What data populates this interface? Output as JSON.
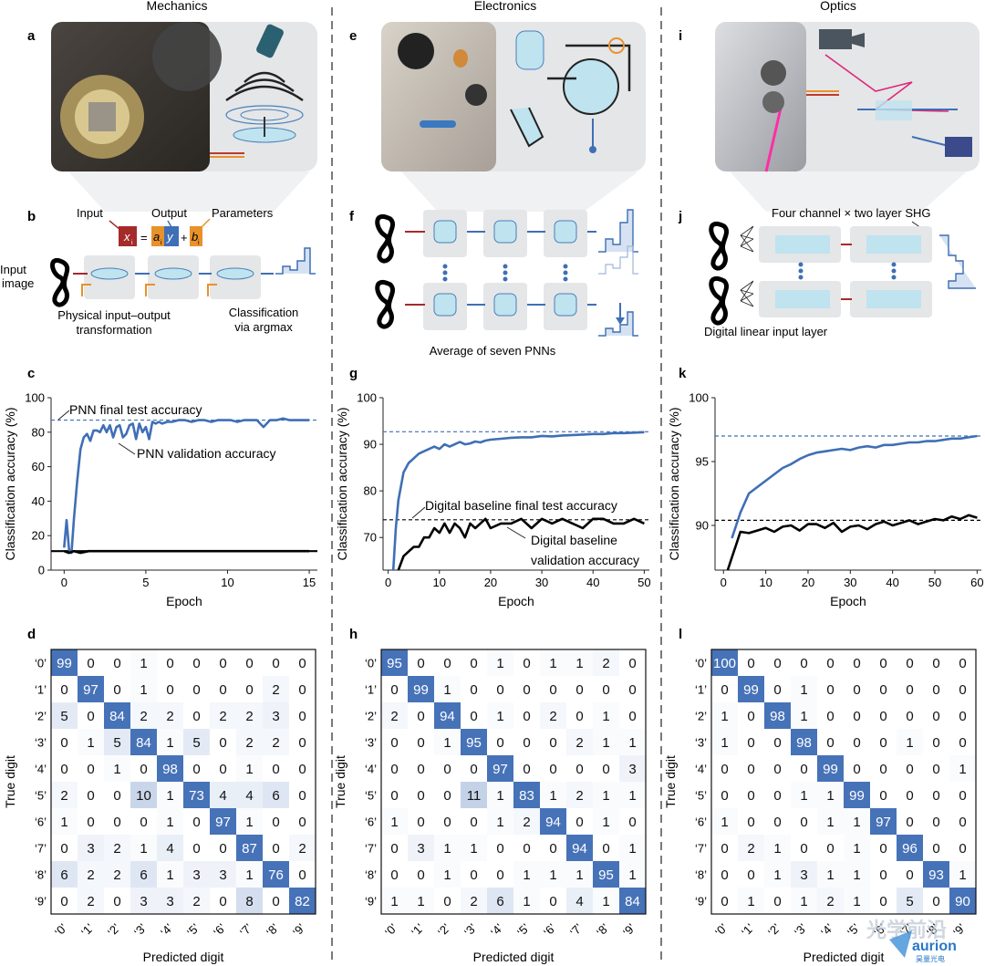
{
  "columns": [
    {
      "header": "Mechanics",
      "panel_labels": {
        "photo": "a",
        "schematic": "b",
        "curve": "c",
        "matrix": "d"
      },
      "schematic": {
        "equation": {
          "x": "x",
          "sub_x": "i",
          "eq": "=",
          "a": "a",
          "sub_a": "i",
          "y": "y",
          "plus": "+",
          "b": "b",
          "sub_b": "i"
        },
        "labels": [
          "Input",
          "Output",
          "Parameters",
          "Input",
          "image",
          "Physical input–output",
          "transformation",
          "Classification",
          "via argmax"
        ]
      }
    },
    {
      "header": "Electronics",
      "panel_labels": {
        "photo": "e",
        "schematic": "f",
        "curve": "g",
        "matrix": "h"
      },
      "schematic": {
        "labels": [
          "Average of seven PNNs"
        ]
      }
    },
    {
      "header": "Optics",
      "panel_labels": {
        "photo": "i",
        "schematic": "j",
        "curve": "k",
        "matrix": "l"
      },
      "schematic": {
        "labels": [
          "Four channel × two layer SHG",
          "Digital linear input layer"
        ]
      }
    }
  ],
  "colors": {
    "pnn": "#3f6fb5",
    "digital": "#000000",
    "red": "#a52a2a",
    "orange": "#e8922b",
    "panel_bg": "#e4e6e8"
  },
  "watermark": {
    "line1": "光学前沿",
    "line2": "aurion",
    "line3": "昊量光电"
  },
  "chart_data": [
    {
      "type": "line",
      "panel": "c",
      "xlabel": "Epoch",
      "ylabel": "Classification accuracy (%)",
      "xlim": [
        -0.8,
        15.5
      ],
      "ylim": [
        0,
        100
      ],
      "xticks": [
        0,
        5,
        10,
        15
      ],
      "yticks": [
        0,
        20,
        40,
        60,
        80,
        100
      ],
      "annotations": [
        "PNN final test accuracy",
        "PNN validation accuracy"
      ],
      "hlines": [
        {
          "y": 87,
          "color": "pnn"
        },
        {
          "y": 11,
          "color": "digital",
          "solid": true
        }
      ],
      "series": [
        {
          "color": "pnn",
          "x": [
            0,
            0.15,
            0.3,
            0.45,
            0.6,
            0.8,
            1.0,
            1.2,
            1.4,
            1.6,
            1.8,
            2.0,
            2.2,
            2.4,
            2.6,
            2.8,
            3.0,
            3.2,
            3.4,
            3.6,
            3.8,
            4.0,
            4.2,
            4.4,
            4.6,
            4.8,
            5.0,
            5.2,
            5.4,
            5.6,
            5.8,
            6.0,
            6.3,
            6.6,
            7.0,
            7.4,
            7.8,
            8.2,
            8.6,
            9.0,
            9.4,
            9.8,
            10.2,
            10.6,
            11.0,
            11.4,
            11.8,
            12.2,
            12.6,
            13.0,
            13.4,
            13.8,
            14.2,
            14.6,
            15.0
          ],
          "y": [
            13,
            29,
            12,
            10,
            30,
            52,
            70,
            77,
            79,
            75,
            81,
            81,
            80,
            84,
            80,
            84,
            77,
            83,
            84,
            77,
            79,
            84,
            85,
            76,
            85,
            80,
            83,
            76,
            86,
            85,
            86,
            85,
            86,
            86,
            87,
            87,
            86,
            87,
            87,
            86,
            87,
            87,
            87,
            86,
            87,
            87,
            87,
            83,
            87,
            87,
            88,
            87,
            87,
            87,
            87
          ]
        },
        {
          "color": "digital",
          "x": [
            0,
            0.3,
            0.6,
            1.0,
            1.5,
            2,
            4,
            6,
            8,
            10,
            12,
            14,
            15
          ],
          "y": [
            11,
            10,
            11,
            10,
            11,
            11,
            11,
            11,
            11,
            11,
            11,
            11,
            11
          ]
        }
      ]
    },
    {
      "type": "line",
      "panel": "g",
      "xlabel": "Epoch",
      "ylabel": "Classification accuracy (%)",
      "xlim": [
        -1,
        51
      ],
      "ylim": [
        63,
        100
      ],
      "xticks": [
        0,
        10,
        20,
        30,
        40,
        50
      ],
      "yticks": [
        70,
        80,
        90,
        100
      ],
      "annotations": [
        "Digital baseline final test accuracy",
        "Digital baseline",
        "validation accuracy"
      ],
      "hlines": [
        {
          "y": 92.7,
          "color": "pnn"
        },
        {
          "y": 73.8,
          "color": "digital"
        }
      ],
      "series": [
        {
          "color": "pnn",
          "x": [
            1,
            1.5,
            2,
            3,
            4,
            5,
            6,
            7,
            8,
            9,
            10,
            11,
            12,
            13,
            14,
            15,
            16,
            17,
            18,
            19,
            20,
            22,
            24,
            26,
            28,
            30,
            32,
            34,
            36,
            38,
            40,
            42,
            44,
            46,
            48,
            50
          ],
          "y": [
            63,
            72,
            78,
            84,
            86,
            87,
            88,
            88.5,
            89,
            89.5,
            89,
            90,
            89.5,
            90,
            90.5,
            90,
            90.2,
            90.6,
            90.4,
            90.8,
            91,
            91.2,
            91.4,
            91.5,
            91.5,
            91.8,
            91.7,
            91.9,
            92,
            92.1,
            92.2,
            92.2,
            92.4,
            92.4,
            92.5,
            92.6
          ]
        },
        {
          "color": "digital",
          "x": [
            2,
            3,
            4,
            5,
            6,
            7,
            8,
            9,
            10,
            11,
            12,
            13,
            14,
            15,
            16,
            17,
            18,
            19,
            20,
            22,
            24,
            26,
            28,
            30,
            32,
            34,
            36,
            38,
            40,
            42,
            44,
            46,
            48,
            50
          ],
          "y": [
            63,
            66,
            67,
            68,
            68,
            70,
            70,
            72,
            71,
            73,
            71,
            73,
            72,
            70,
            73,
            72,
            73,
            74,
            72,
            73,
            73,
            74,
            72,
            74,
            73,
            74,
            73,
            72,
            74,
            74,
            73,
            73,
            74,
            73
          ]
        }
      ]
    },
    {
      "type": "line",
      "panel": "k",
      "xlabel": "Epoch",
      "ylabel": "Classification accuracy (%)",
      "xlim": [
        -2,
        61
      ],
      "ylim": [
        86.5,
        100
      ],
      "xticks": [
        0,
        10,
        20,
        30,
        40,
        50,
        60
      ],
      "yticks": [
        90,
        95,
        100
      ],
      "annotations": [],
      "hlines": [
        {
          "y": 97,
          "color": "pnn"
        },
        {
          "y": 90.4,
          "color": "digital"
        }
      ],
      "series": [
        {
          "color": "pnn",
          "x": [
            2,
            4,
            6,
            8,
            10,
            12,
            14,
            16,
            18,
            20,
            22,
            24,
            26,
            28,
            30,
            32,
            34,
            36,
            38,
            40,
            42,
            44,
            46,
            48,
            50,
            52,
            54,
            56,
            58,
            60
          ],
          "y": [
            89,
            91,
            92.5,
            93,
            93.5,
            94,
            94.5,
            94.8,
            95.2,
            95.5,
            95.7,
            95.8,
            95.9,
            96,
            95.9,
            96.1,
            96.2,
            96.1,
            96.3,
            96.3,
            96.4,
            96.5,
            96.5,
            96.6,
            96.6,
            96.7,
            96.8,
            96.8,
            96.9,
            97
          ]
        },
        {
          "color": "digital",
          "x": [
            1,
            2,
            3,
            4,
            6,
            8,
            10,
            12,
            14,
            16,
            18,
            20,
            22,
            24,
            26,
            28,
            30,
            32,
            34,
            36,
            38,
            40,
            42,
            44,
            46,
            48,
            50,
            52,
            54,
            56,
            58,
            60
          ],
          "y": [
            86.5,
            87.5,
            88.5,
            89.5,
            89.4,
            89.6,
            89.8,
            89.5,
            89.9,
            90,
            89.6,
            90.1,
            90.1,
            89.8,
            90.2,
            89.5,
            89.9,
            90,
            89.7,
            90.1,
            90.3,
            90,
            90.2,
            90.4,
            90.1,
            90.3,
            90.5,
            90.4,
            90.7,
            90.5,
            90.8,
            90.6
          ]
        }
      ]
    },
    {
      "type": "heatmap",
      "panel": "d",
      "xlabel": "Predicted digit",
      "ylabel": "True digit",
      "categories": [
        "‘0’",
        "‘1’",
        "‘2’",
        "‘3’",
        "‘4’",
        "‘5’",
        "‘6’",
        "‘7’",
        "‘8’",
        "‘9’"
      ],
      "values": [
        [
          99,
          0,
          0,
          1,
          0,
          0,
          0,
          0,
          0,
          0
        ],
        [
          0,
          97,
          0,
          1,
          0,
          0,
          0,
          0,
          2,
          0
        ],
        [
          5,
          0,
          84,
          2,
          2,
          0,
          2,
          2,
          3,
          0
        ],
        [
          0,
          1,
          5,
          84,
          1,
          5,
          0,
          2,
          2,
          0
        ],
        [
          0,
          0,
          1,
          0,
          98,
          0,
          0,
          1,
          0,
          0
        ],
        [
          2,
          0,
          0,
          10,
          1,
          73,
          4,
          4,
          6,
          0
        ],
        [
          1,
          0,
          0,
          0,
          1,
          0,
          97,
          1,
          0,
          0
        ],
        [
          0,
          3,
          2,
          1,
          4,
          0,
          0,
          87,
          0,
          2
        ],
        [
          6,
          2,
          2,
          6,
          1,
          3,
          3,
          1,
          76,
          0
        ],
        [
          0,
          2,
          0,
          3,
          3,
          2,
          0,
          8,
          0,
          82
        ]
      ]
    },
    {
      "type": "heatmap",
      "panel": "h",
      "xlabel": "Predicted digit",
      "ylabel": "True digit",
      "categories": [
        "‘0’",
        "‘1’",
        "‘2’",
        "‘3’",
        "‘4’",
        "‘5’",
        "‘6’",
        "‘7’",
        "‘8’",
        "‘9’"
      ],
      "values": [
        [
          95,
          0,
          0,
          0,
          1,
          0,
          1,
          1,
          2,
          0
        ],
        [
          0,
          99,
          1,
          0,
          0,
          0,
          0,
          0,
          0,
          0
        ],
        [
          2,
          0,
          94,
          0,
          1,
          0,
          2,
          0,
          1,
          0
        ],
        [
          0,
          0,
          1,
          95,
          0,
          0,
          0,
          2,
          1,
          1
        ],
        [
          0,
          0,
          0,
          0,
          97,
          0,
          0,
          0,
          0,
          3
        ],
        [
          0,
          0,
          0,
          11,
          1,
          83,
          1,
          2,
          1,
          1
        ],
        [
          1,
          0,
          0,
          0,
          1,
          2,
          94,
          0,
          1,
          0
        ],
        [
          0,
          3,
          1,
          1,
          0,
          0,
          0,
          94,
          0,
          1
        ],
        [
          0,
          0,
          1,
          0,
          0,
          1,
          1,
          1,
          95,
          1
        ],
        [
          1,
          1,
          0,
          2,
          6,
          1,
          0,
          4,
          1,
          84
        ]
      ]
    },
    {
      "type": "heatmap",
      "panel": "l",
      "xlabel": "Predicted digit",
      "ylabel": "True digit",
      "categories": [
        "‘0’",
        "‘1’",
        "‘2’",
        "‘3’",
        "‘4’",
        "‘5’",
        "‘6’",
        "‘7’",
        "‘8’",
        "‘9’"
      ],
      "values": [
        [
          100,
          0,
          0,
          0,
          0,
          0,
          0,
          0,
          0,
          0
        ],
        [
          0,
          99,
          0,
          1,
          0,
          0,
          0,
          0,
          0,
          0
        ],
        [
          1,
          0,
          98,
          1,
          0,
          0,
          0,
          0,
          0,
          0
        ],
        [
          1,
          0,
          0,
          98,
          0,
          0,
          0,
          1,
          0,
          0
        ],
        [
          0,
          0,
          0,
          0,
          99,
          0,
          0,
          0,
          0,
          1
        ],
        [
          0,
          0,
          0,
          1,
          1,
          99,
          0,
          0,
          0,
          0
        ],
        [
          1,
          0,
          0,
          0,
          1,
          1,
          97,
          0,
          0,
          0
        ],
        [
          0,
          2,
          1,
          0,
          0,
          1,
          0,
          96,
          0,
          0
        ],
        [
          0,
          0,
          1,
          3,
          1,
          1,
          0,
          0,
          93,
          1
        ],
        [
          0,
          1,
          0,
          1,
          2,
          1,
          0,
          5,
          0,
          90
        ]
      ]
    }
  ]
}
